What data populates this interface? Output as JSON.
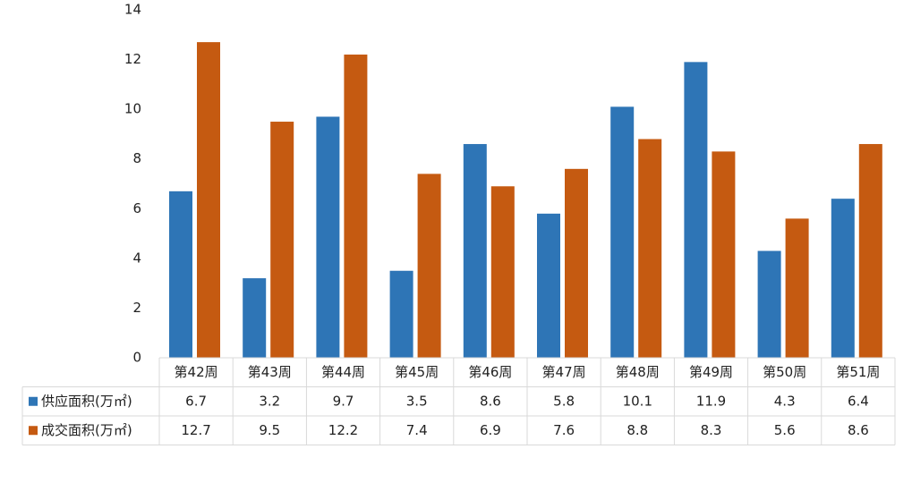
{
  "chart_data": {
    "type": "bar",
    "categories": [
      "第42周",
      "第43周",
      "第44周",
      "第45周",
      "第46周",
      "第47周",
      "第48周",
      "第49周",
      "第50周",
      "第51周"
    ],
    "series": [
      {
        "name": "供应面积(万㎡)",
        "color": "#2e75b6",
        "values": [
          6.7,
          3.2,
          9.7,
          3.5,
          8.6,
          5.8,
          10.1,
          11.9,
          4.3,
          6.4
        ]
      },
      {
        "name": "成交面积(万㎡)",
        "color": "#c55a11",
        "values": [
          12.7,
          9.5,
          12.2,
          7.4,
          6.9,
          7.6,
          8.8,
          8.3,
          5.6,
          8.6
        ]
      }
    ],
    "ylim": [
      0,
      14
    ],
    "yticks": [
      0,
      2,
      4,
      6,
      8,
      10,
      12,
      14
    ],
    "grid": false,
    "data_table": true
  }
}
